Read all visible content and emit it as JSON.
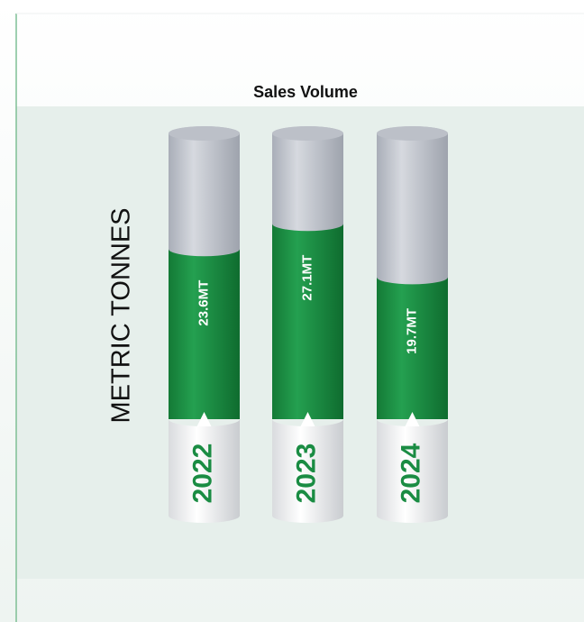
{
  "chart_data": {
    "type": "bar",
    "title": "Sales Volume",
    "y_label": "METRIC TONNES",
    "categories": [
      "2022",
      "2023",
      "2024"
    ],
    "values": [
      23.6,
      27.1,
      19.7
    ],
    "value_labels": [
      "23.6MT",
      "27.1MT",
      "19.7MT"
    ],
    "color": "#1a8c43"
  }
}
